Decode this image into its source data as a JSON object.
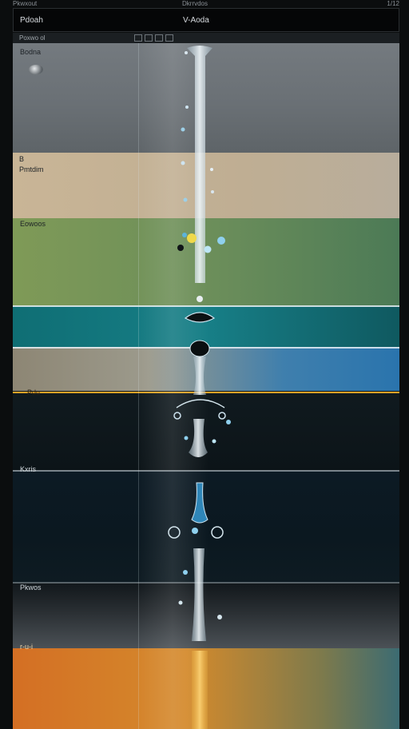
{
  "header": {
    "top_left": "Pkwxout",
    "top_center": "Dkrrvdos",
    "top_right": "1/12",
    "title_left": "Pdoah",
    "title_center": "V-Aoda"
  },
  "menubar": {
    "label": "Poxwo ol"
  },
  "layers": [
    {
      "label": "Bodna"
    },
    {
      "label": "B"
    },
    {
      "label": "Pmtdim"
    },
    {
      "label": "Eowoos"
    },
    {
      "label": "Pdu"
    },
    {
      "label": "Kxris"
    },
    {
      "label": "Pkwos"
    },
    {
      "label": "r-u-i"
    }
  ],
  "colors": {
    "sky": "#6e7479",
    "sand": "#c4b396",
    "green": "#6d8d58",
    "teal": "#137a82",
    "blue": "#2a74ad",
    "deep": "#0c1820",
    "orange": "#d47a27",
    "water_drop": "#bcd7e6"
  }
}
